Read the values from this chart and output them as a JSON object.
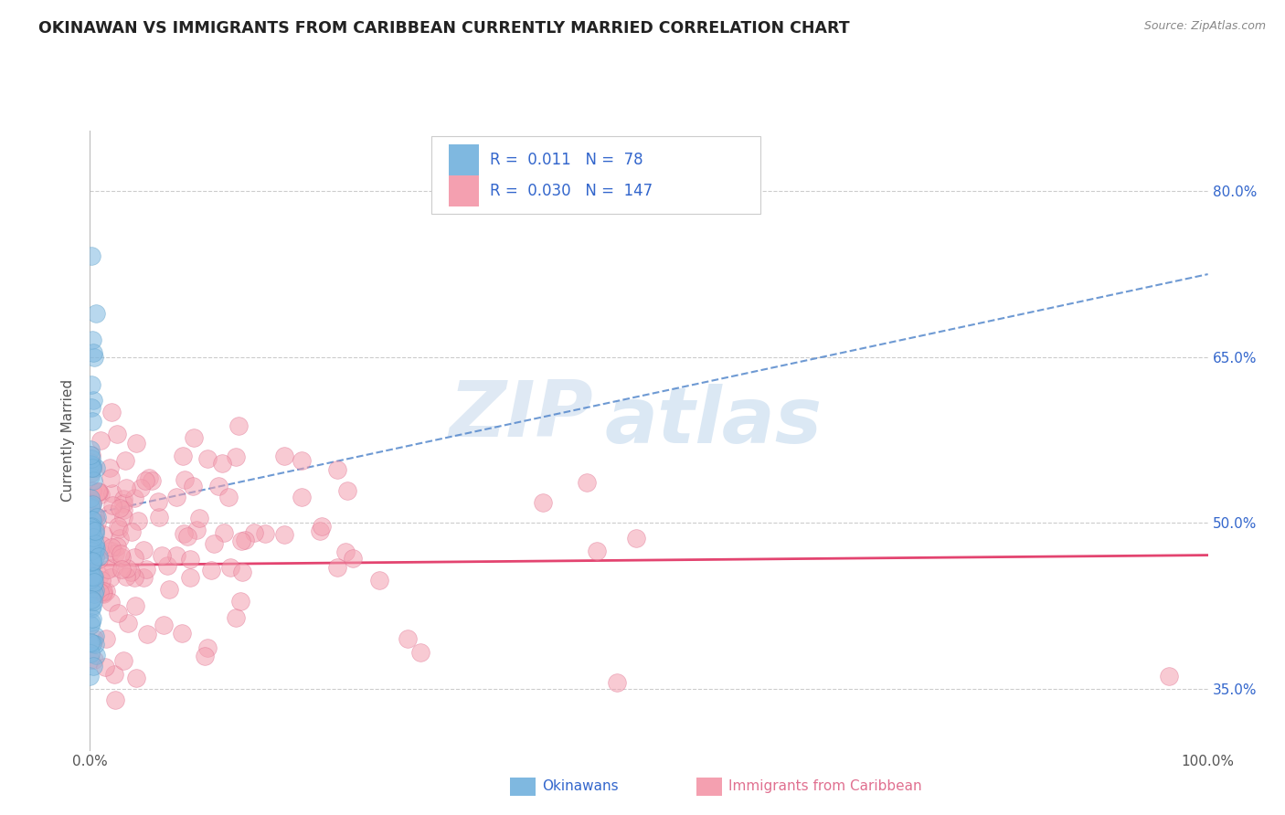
{
  "title": "OKINAWAN VS IMMIGRANTS FROM CARIBBEAN CURRENTLY MARRIED CORRELATION CHART",
  "source": "Source: ZipAtlas.com",
  "ylabel": "Currently Married",
  "watermark_zip": "ZIP",
  "watermark_atlas": "atlas",
  "legend1_label": "Okinawans",
  "legend2_label": "Immigrants from Caribbean",
  "R1": 0.011,
  "N1": 78,
  "R2": 0.03,
  "N2": 147,
  "xlim": [
    0.0,
    1.0
  ],
  "ylim": [
    0.295,
    0.855
  ],
  "ytick_labels": [
    "35.0%",
    "50.0%",
    "65.0%",
    "80.0%"
  ],
  "ytick_vals": [
    0.35,
    0.5,
    0.65,
    0.8
  ],
  "color_blue": "#7fb8e0",
  "color_blue_edge": "#5a9ec8",
  "color_pink": "#f4a0b0",
  "color_pink_edge": "#e07090",
  "trendline_blue": "#5588cc",
  "trendline_pink": "#e03060",
  "bg_color": "#ffffff",
  "grid_color": "#cccccc",
  "title_color": "#222222",
  "source_color": "#888888",
  "legend_text_color": "#3366cc",
  "blue_trend_start_y": 0.508,
  "blue_trend_end_y": 0.725,
  "pink_trend_start_y": 0.462,
  "pink_trend_end_y": 0.471
}
